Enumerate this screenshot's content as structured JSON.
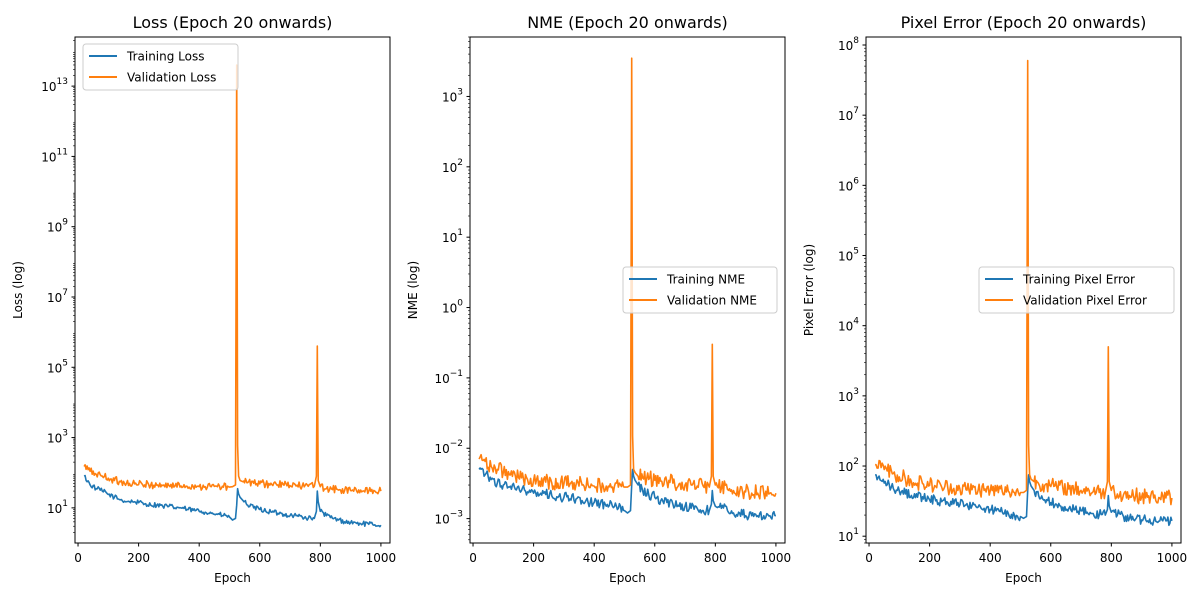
{
  "chart_data": [
    {
      "type": "line",
      "title": "Loss (Epoch 20 onwards)",
      "xlabel": "Epoch",
      "ylabel": "Loss (log)",
      "yscale": "log",
      "xlim": [
        -10,
        1030
      ],
      "ylim": [
        1.0,
        250000000000000
      ],
      "xticks": [
        0,
        200,
        400,
        600,
        800,
        1000
      ],
      "yticks": [
        {
          "value": 10,
          "base": "10",
          "exp": "1"
        },
        {
          "value": 1000,
          "base": "10",
          "exp": "3"
        },
        {
          "value": 100000,
          "base": "10",
          "exp": "5"
        },
        {
          "value": 10000000,
          "base": "10",
          "exp": "7"
        },
        {
          "value": 1000000000,
          "base": "10",
          "exp": "9"
        },
        {
          "value": 100000000000,
          "base": "10",
          "exp": "11"
        },
        {
          "value": 10000000000000,
          "base": "10",
          "exp": "13"
        }
      ],
      "legend": "top-left",
      "x": [
        20,
        40,
        60,
        80,
        100,
        120,
        140,
        160,
        180,
        200,
        220,
        240,
        260,
        280,
        300,
        320,
        340,
        360,
        380,
        400,
        420,
        440,
        460,
        480,
        500,
        510,
        520,
        524,
        527,
        530,
        535,
        545,
        560,
        580,
        600,
        620,
        640,
        660,
        680,
        700,
        720,
        740,
        760,
        780,
        787,
        790,
        793,
        800,
        820,
        840,
        860,
        880,
        900,
        920,
        940,
        960,
        980,
        1000
      ],
      "series": [
        {
          "name": "Training Loss",
          "color": "#1f77b4",
          "values": [
            80,
            45,
            35,
            30,
            24,
            20,
            17,
            15,
            15,
            14,
            13,
            12,
            12,
            11,
            11,
            10,
            10,
            9,
            8.5,
            8,
            7.5,
            7,
            6.5,
            6,
            5.5,
            4.5,
            5,
            12,
            35,
            25,
            20,
            16,
            12,
            10,
            9,
            8,
            7.5,
            7,
            6.5,
            6,
            6,
            5.5,
            5,
            5,
            8,
            30,
            15,
            8,
            6,
            5,
            4.5,
            4,
            3.8,
            3.6,
            3.5,
            3.4,
            3.3,
            3.2
          ]
        },
        {
          "name": "Validation Loss",
          "color": "#ff7f0e",
          "values": [
            150,
            110,
            90,
            80,
            70,
            60,
            55,
            50,
            48,
            46,
            45,
            44,
            44,
            43,
            43,
            42,
            42,
            41,
            41,
            40,
            40,
            40,
            40,
            39,
            39,
            40,
            45,
            40000000000000,
            600,
            80,
            60,
            55,
            52,
            50,
            48,
            47,
            46,
            45,
            44,
            43,
            42,
            42,
            41,
            41,
            80,
            400000,
            60,
            40,
            35,
            33,
            32,
            31,
            31,
            30,
            30,
            30,
            30,
            30
          ]
        }
      ]
    },
    {
      "type": "line",
      "title": "NME (Epoch 20 onwards)",
      "xlabel": "Epoch",
      "ylabel": "NME (log)",
      "yscale": "log",
      "xlim": [
        -10,
        1030
      ],
      "ylim": [
        0.00045,
        7000
      ],
      "xticks": [
        0,
        200,
        400,
        600,
        800,
        1000
      ],
      "yticks": [
        {
          "value": 0.001,
          "base": "10",
          "exp": "−3"
        },
        {
          "value": 0.01,
          "base": "10",
          "exp": "−2"
        },
        {
          "value": 0.1,
          "base": "10",
          "exp": "−1"
        },
        {
          "value": 1,
          "base": "10",
          "exp": "0"
        },
        {
          "value": 10,
          "base": "10",
          "exp": "1"
        },
        {
          "value": 100,
          "base": "10",
          "exp": "2"
        },
        {
          "value": 1000,
          "base": "10",
          "exp": "3"
        }
      ],
      "legend": "center-right",
      "x": [
        20,
        40,
        60,
        80,
        100,
        120,
        140,
        160,
        180,
        200,
        220,
        240,
        260,
        280,
        300,
        320,
        340,
        360,
        380,
        400,
        420,
        440,
        460,
        480,
        500,
        510,
        520,
        524,
        527,
        530,
        535,
        545,
        560,
        580,
        600,
        620,
        640,
        660,
        680,
        700,
        720,
        740,
        760,
        780,
        787,
        790,
        793,
        800,
        820,
        840,
        860,
        880,
        900,
        920,
        940,
        960,
        980,
        1000
      ],
      "series": [
        {
          "name": "Training NME",
          "color": "#1f77b4",
          "values": [
            0.005,
            0.0042,
            0.0036,
            0.0032,
            0.003,
            0.0028,
            0.0026,
            0.0025,
            0.0024,
            0.0023,
            0.0022,
            0.0022,
            0.0021,
            0.002,
            0.002,
            0.0019,
            0.0019,
            0.0018,
            0.0017,
            0.0017,
            0.0016,
            0.0015,
            0.0015,
            0.0014,
            0.0013,
            0.0012,
            0.0013,
            0.003,
            0.005,
            0.004,
            0.0035,
            0.003,
            0.0025,
            0.0022,
            0.002,
            0.0018,
            0.0017,
            0.0016,
            0.0015,
            0.0015,
            0.0014,
            0.0014,
            0.0013,
            0.0013,
            0.0016,
            0.0025,
            0.0018,
            0.0015,
            0.0014,
            0.0013,
            0.0012,
            0.0012,
            0.0011,
            0.0011,
            0.0011,
            0.0011,
            0.0011,
            0.0011
          ]
        },
        {
          "name": "Validation NME",
          "color": "#ff7f0e",
          "values": [
            0.007,
            0.0065,
            0.0055,
            0.005,
            0.0045,
            0.0042,
            0.004,
            0.0038,
            0.0036,
            0.0035,
            0.0034,
            0.0033,
            0.0032,
            0.0032,
            0.0031,
            0.0031,
            0.003,
            0.003,
            0.003,
            0.0029,
            0.0029,
            0.0029,
            0.0028,
            0.0028,
            0.0028,
            0.0028,
            0.003,
            3500,
            0.015,
            0.005,
            0.0045,
            0.004,
            0.0038,
            0.0036,
            0.0035,
            0.0034,
            0.0033,
            0.0032,
            0.0031,
            0.003,
            0.003,
            0.0029,
            0.0029,
            0.0028,
            0.004,
            0.3,
            0.004,
            0.003,
            0.0027,
            0.0026,
            0.0025,
            0.0024,
            0.0024,
            0.0023,
            0.0023,
            0.0023,
            0.0023,
            0.0023
          ]
        }
      ]
    },
    {
      "type": "line",
      "title": "Pixel Error (Epoch 20 onwards)",
      "xlabel": "Epoch",
      "ylabel": "Pixel Error (log)",
      "yscale": "log",
      "xlim": [
        -10,
        1030
      ],
      "ylim": [
        8,
        130000000
      ],
      "xticks": [
        0,
        200,
        400,
        600,
        800,
        1000
      ],
      "yticks": [
        {
          "value": 10,
          "base": "10",
          "exp": "1"
        },
        {
          "value": 100,
          "base": "10",
          "exp": "2"
        },
        {
          "value": 1000,
          "base": "10",
          "exp": "3"
        },
        {
          "value": 10000,
          "base": "10",
          "exp": "4"
        },
        {
          "value": 100000,
          "base": "10",
          "exp": "5"
        },
        {
          "value": 1000000,
          "base": "10",
          "exp": "6"
        },
        {
          "value": 10000000,
          "base": "10",
          "exp": "7"
        },
        {
          "value": 100000000,
          "base": "10",
          "exp": "8"
        }
      ],
      "legend": "center-right",
      "x": [
        20,
        40,
        60,
        80,
        100,
        120,
        140,
        160,
        180,
        200,
        220,
        240,
        260,
        280,
        300,
        320,
        340,
        360,
        380,
        400,
        420,
        440,
        460,
        480,
        500,
        510,
        520,
        524,
        527,
        530,
        535,
        545,
        560,
        580,
        600,
        620,
        640,
        660,
        680,
        700,
        720,
        740,
        760,
        780,
        787,
        790,
        793,
        800,
        820,
        840,
        860,
        880,
        900,
        920,
        940,
        960,
        980,
        1000
      ],
      "series": [
        {
          "name": "Training Pixel Error",
          "color": "#1f77b4",
          "values": [
            75,
            62,
            54,
            48,
            44,
            40,
            38,
            36,
            34,
            33,
            32,
            31,
            30,
            29,
            28,
            28,
            27,
            26,
            25,
            24,
            23,
            22,
            21,
            20,
            19,
            18,
            19,
            45,
            75,
            60,
            52,
            45,
            38,
            33,
            30,
            28,
            26,
            25,
            24,
            23,
            22,
            21,
            20,
            20,
            24,
            38,
            27,
            22,
            20,
            19,
            18,
            17.5,
            17,
            16.5,
            16.5,
            16.5,
            16.5,
            16.5
          ]
        },
        {
          "name": "Validation Pixel Error",
          "color": "#ff7f0e",
          "values": [
            105,
            95,
            85,
            78,
            70,
            65,
            60,
            57,
            55,
            53,
            51,
            50,
            49,
            48,
            47,
            46,
            46,
            45,
            45,
            44,
            44,
            43,
            43,
            42,
            42,
            42,
            45,
            60000000,
            200,
            75,
            65,
            60,
            56,
            53,
            51,
            50,
            48,
            47,
            46,
            45,
            44,
            43,
            42,
            42,
            60,
            5000,
            60,
            45,
            40,
            39,
            38,
            37,
            36,
            36,
            35,
            35,
            35,
            35
          ]
        }
      ]
    }
  ]
}
